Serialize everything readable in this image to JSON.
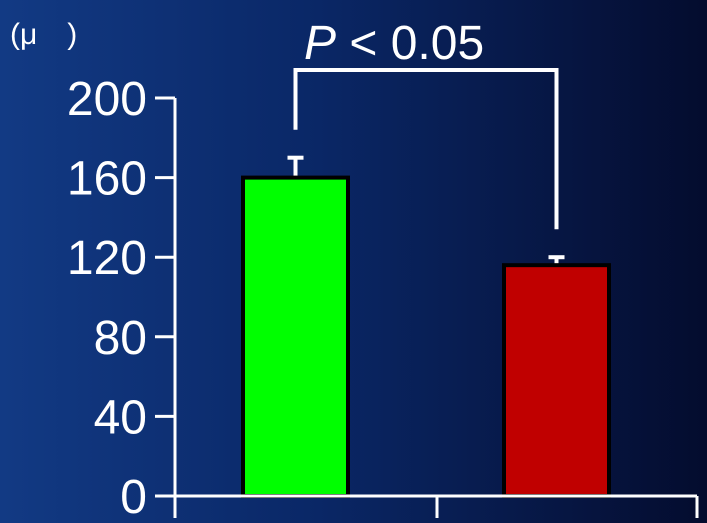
{
  "chart_data": {
    "type": "bar",
    "title": "",
    "unit_label": "(μ )",
    "xlabel": "",
    "ylabel": "",
    "ylim": [
      0,
      200
    ],
    "yticks": [
      0,
      40,
      80,
      120,
      160,
      200
    ],
    "categories": [
      "",
      ""
    ],
    "values": [
      160,
      116
    ],
    "errors": [
      10,
      4
    ],
    "bar_colors": [
      "#00ff00",
      "#c00000"
    ],
    "annotation": {
      "italic": "P",
      "text": " < 0.05"
    },
    "grid": false
  }
}
